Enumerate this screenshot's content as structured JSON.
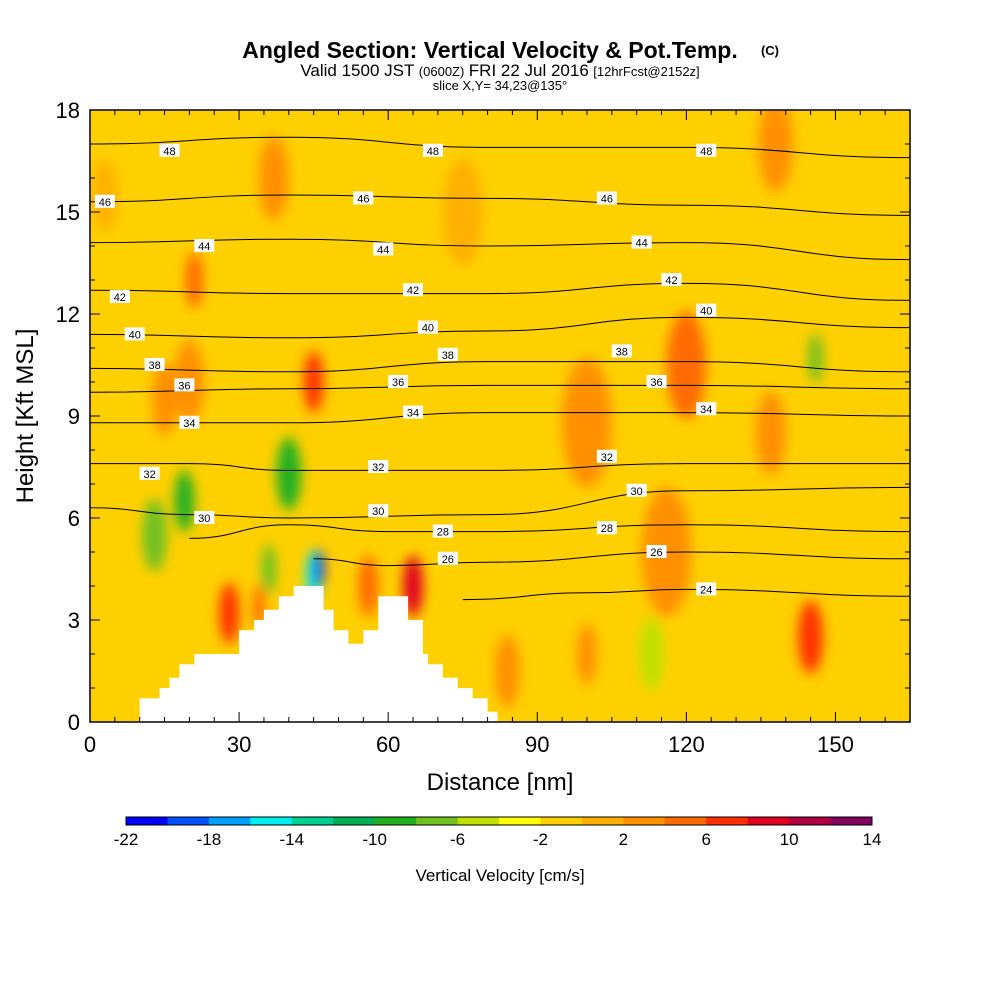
{
  "chart_data": {
    "type": "heatmap",
    "title": "Angled Section: Vertical Velocity & Pot.Temp.",
    "title_mark": "(C)",
    "subtitle": {
      "valid_prefix": "Valid 1500 JST",
      "utc": "(0600Z)",
      "date": "FRI 22 Jul 2016",
      "forecast": "[12hrFcst@2152z]"
    },
    "slice_label": "slice X,Y= 34,23@135°",
    "xlabel": "Distance [nm]",
    "ylabel": "Height [Kft MSL]",
    "xlim": [
      0,
      165
    ],
    "ylim": [
      0,
      18
    ],
    "xticks": [
      "0",
      "30",
      "60",
      "90",
      "120",
      "150"
    ],
    "yticks": [
      "0",
      "3",
      "6",
      "9",
      "12",
      "15",
      "18"
    ],
    "colorbar": {
      "label": "Vertical Velocity [cm/s]",
      "ticks": [
        "-22",
        "-18",
        "-14",
        "-10",
        "-6",
        "-2",
        "2",
        "6",
        "10",
        "14"
      ],
      "levels": [
        -22,
        -20,
        -18,
        -16,
        -14,
        -12,
        -10,
        -8,
        -6,
        -4,
        -2,
        0,
        2,
        4,
        6,
        8,
        10,
        12,
        14
      ],
      "colors": [
        "#0000ff",
        "#0050ff",
        "#00a0ff",
        "#00f0f0",
        "#00d090",
        "#00b050",
        "#20b020",
        "#70c020",
        "#c0e000",
        "#ffff00",
        "#ffd000",
        "#ffb000",
        "#ff9000",
        "#ff6a00",
        "#ff3000",
        "#e00020",
        "#b00040",
        "#800060",
        "#500080"
      ]
    },
    "background_velocity": -1,
    "velocity_cells": [
      {
        "x": 21,
        "y": 13.0,
        "w": -3.6,
        "v": 5
      },
      {
        "x": 20,
        "y": 10.0,
        "w": 6,
        "v": 3
      },
      {
        "x": 15,
        "y": 9.5,
        "w": 5,
        "v": 3
      },
      {
        "x": 13,
        "y": 5.5,
        "w": 5,
        "v": -8
      },
      {
        "x": 19,
        "y": 6.5,
        "w": 4,
        "v": -9
      },
      {
        "x": 40,
        "y": 7.3,
        "w": 5,
        "v": -10
      },
      {
        "x": 36,
        "y": 4.5,
        "w": 3,
        "v": -8
      },
      {
        "x": 45,
        "y": 4.3,
        "w": 3,
        "v": -16
      },
      {
        "x": 46,
        "y": 4.5,
        "w": 2,
        "v": -22
      },
      {
        "x": 28,
        "y": 3.2,
        "w": 4,
        "v": 7
      },
      {
        "x": 34,
        "y": 3.4,
        "w": 2.5,
        "v": 5
      },
      {
        "x": 45,
        "y": 10.0,
        "w": 4,
        "v": 6
      },
      {
        "x": 65,
        "y": 4.0,
        "w": 4,
        "v": 8
      },
      {
        "x": 56,
        "y": 4.0,
        "w": 4,
        "v": 4
      },
      {
        "x": 37,
        "y": 16.0,
        "w": 6,
        "v": 2
      },
      {
        "x": 75,
        "y": 15.0,
        "w": 8,
        "v": 1
      },
      {
        "x": 100,
        "y": 8.8,
        "w": 10,
        "v": 2
      },
      {
        "x": 120,
        "y": 10.5,
        "w": 8,
        "v": 4
      },
      {
        "x": 137,
        "y": 8.5,
        "w": 6,
        "v": 3
      },
      {
        "x": 116,
        "y": 5.0,
        "w": 10,
        "v": 2
      },
      {
        "x": 145,
        "y": 2.5,
        "w": 5,
        "v": 6
      },
      {
        "x": 113,
        "y": 2.0,
        "w": 5,
        "v": -6
      },
      {
        "x": 146,
        "y": 10.7,
        "w": 3,
        "v": -8
      },
      {
        "x": 100,
        "y": 2.0,
        "w": 4,
        "v": 3
      },
      {
        "x": 138,
        "y": 17.0,
        "w": 7,
        "v": 2
      },
      {
        "x": 3,
        "y": 15.5,
        "w": 5,
        "v": 1
      },
      {
        "x": 84,
        "y": 1.5,
        "w": 5,
        "v": 2
      }
    ],
    "isentropes": [
      {
        "label": "48",
        "pts": [
          [
            0,
            17.0
          ],
          [
            40,
            17.2
          ],
          [
            80,
            16.9
          ],
          [
            120,
            16.9
          ],
          [
            165,
            16.6
          ]
        ],
        "labels_at": [
          [
            16,
            16.8
          ],
          [
            69,
            16.8
          ],
          [
            124,
            16.8
          ]
        ]
      },
      {
        "label": "46",
        "pts": [
          [
            0,
            15.3
          ],
          [
            40,
            15.5
          ],
          [
            80,
            15.4
          ],
          [
            120,
            15.2
          ],
          [
            165,
            14.9
          ]
        ],
        "labels_at": [
          [
            3,
            15.3
          ],
          [
            55,
            15.4
          ],
          [
            104,
            15.4
          ]
        ]
      },
      {
        "label": "44",
        "pts": [
          [
            0,
            14.1
          ],
          [
            40,
            14.2
          ],
          [
            80,
            14.0
          ],
          [
            120,
            14.1
          ],
          [
            165,
            13.6
          ]
        ],
        "labels_at": [
          [
            23,
            14.0
          ],
          [
            59,
            13.9
          ],
          [
            111,
            14.1
          ]
        ]
      },
      {
        "label": "42",
        "pts": [
          [
            0,
            12.7
          ],
          [
            40,
            12.6
          ],
          [
            80,
            12.6
          ],
          [
            120,
            12.9
          ],
          [
            165,
            12.4
          ]
        ],
        "labels_at": [
          [
            6,
            12.5
          ],
          [
            65,
            12.7
          ],
          [
            117,
            13.0
          ]
        ]
      },
      {
        "label": "40",
        "pts": [
          [
            0,
            11.4
          ],
          [
            40,
            11.3
          ],
          [
            80,
            11.5
          ],
          [
            120,
            11.9
          ],
          [
            165,
            11.6
          ]
        ],
        "labels_at": [
          [
            9,
            11.4
          ],
          [
            68,
            11.6
          ],
          [
            124,
            12.1
          ]
        ]
      },
      {
        "label": "38",
        "pts": [
          [
            0,
            10.4
          ],
          [
            40,
            10.3
          ],
          [
            80,
            10.6
          ],
          [
            120,
            10.6
          ],
          [
            165,
            10.3
          ]
        ],
        "labels_at": [
          [
            13,
            10.5
          ],
          [
            72,
            10.8
          ],
          [
            107,
            10.9
          ]
        ]
      },
      {
        "label": "36",
        "pts": [
          [
            0,
            9.7
          ],
          [
            40,
            9.8
          ],
          [
            80,
            9.9
          ],
          [
            120,
            9.9
          ],
          [
            165,
            9.8
          ]
        ],
        "labels_at": [
          [
            19,
            9.9
          ],
          [
            62,
            10.0
          ],
          [
            114,
            10.0
          ]
        ]
      },
      {
        "label": "34",
        "pts": [
          [
            0,
            8.8
          ],
          [
            40,
            8.8
          ],
          [
            80,
            9.1
          ],
          [
            120,
            9.1
          ],
          [
            165,
            9.0
          ]
        ],
        "labels_at": [
          [
            20,
            8.8
          ],
          [
            65,
            9.1
          ],
          [
            124,
            9.2
          ]
        ]
      },
      {
        "label": "32",
        "pts": [
          [
            0,
            7.6
          ],
          [
            20,
            7.6
          ],
          [
            40,
            7.4
          ],
          [
            80,
            7.4
          ],
          [
            120,
            7.6
          ],
          [
            165,
            7.6
          ]
        ],
        "labels_at": [
          [
            12,
            7.3
          ],
          [
            58,
            7.5
          ],
          [
            104,
            7.8
          ]
        ]
      },
      {
        "label": "30",
        "pts": [
          [
            0,
            6.3
          ],
          [
            20,
            6.1
          ],
          [
            40,
            6.0
          ],
          [
            80,
            6.1
          ],
          [
            120,
            6.8
          ],
          [
            165,
            6.9
          ]
        ],
        "labels_at": [
          [
            23,
            6.0
          ],
          [
            58,
            6.2
          ],
          [
            110,
            6.8
          ]
        ]
      },
      {
        "label": "28",
        "pts": [
          [
            20,
            5.4
          ],
          [
            40,
            5.8
          ],
          [
            60,
            5.6
          ],
          [
            80,
            5.6
          ],
          [
            120,
            5.8
          ],
          [
            165,
            5.6
          ]
        ],
        "labels_at": [
          [
            71,
            5.6
          ],
          [
            104,
            5.7
          ]
        ]
      },
      {
        "label": "26",
        "pts": [
          [
            45,
            4.8
          ],
          [
            60,
            4.6
          ],
          [
            80,
            4.7
          ],
          [
            120,
            5.0
          ],
          [
            165,
            4.8
          ]
        ],
        "labels_at": [
          [
            72,
            4.8
          ],
          [
            114,
            5.0
          ]
        ]
      },
      {
        "label": "24",
        "pts": [
          [
            75,
            3.6
          ],
          [
            100,
            3.8
          ],
          [
            120,
            3.9
          ],
          [
            165,
            3.7
          ]
        ],
        "labels_at": [
          [
            124,
            3.9
          ]
        ]
      }
    ],
    "terrain_profile": [
      [
        10,
        0.0
      ],
      [
        10,
        0.7
      ],
      [
        14,
        0.7
      ],
      [
        14,
        1.0
      ],
      [
        16,
        1.0
      ],
      [
        16,
        1.3
      ],
      [
        18,
        1.3
      ],
      [
        18,
        1.7
      ],
      [
        21,
        1.7
      ],
      [
        21,
        2.0
      ],
      [
        30,
        2.0
      ],
      [
        30,
        2.7
      ],
      [
        33,
        2.7
      ],
      [
        33,
        3.0
      ],
      [
        35,
        3.0
      ],
      [
        35,
        3.3
      ],
      [
        38,
        3.3
      ],
      [
        38,
        3.7
      ],
      [
        41,
        3.7
      ],
      [
        41,
        4.0
      ],
      [
        47,
        4.0
      ],
      [
        47,
        3.3
      ],
      [
        49,
        3.3
      ],
      [
        49,
        2.7
      ],
      [
        52,
        2.7
      ],
      [
        52,
        2.3
      ],
      [
        55,
        2.3
      ],
      [
        55,
        2.7
      ],
      [
        58,
        2.7
      ],
      [
        58,
        3.7
      ],
      [
        64,
        3.7
      ],
      [
        64,
        3.0
      ],
      [
        67,
        3.0
      ],
      [
        67,
        2.0
      ],
      [
        68,
        2.0
      ],
      [
        68,
        1.7
      ],
      [
        71,
        1.7
      ],
      [
        71,
        1.3
      ],
      [
        74,
        1.3
      ],
      [
        74,
        1.0
      ],
      [
        77,
        1.0
      ],
      [
        77,
        0.7
      ],
      [
        80,
        0.7
      ],
      [
        80,
        0.3
      ],
      [
        82,
        0.3
      ],
      [
        82,
        0.0
      ]
    ]
  }
}
